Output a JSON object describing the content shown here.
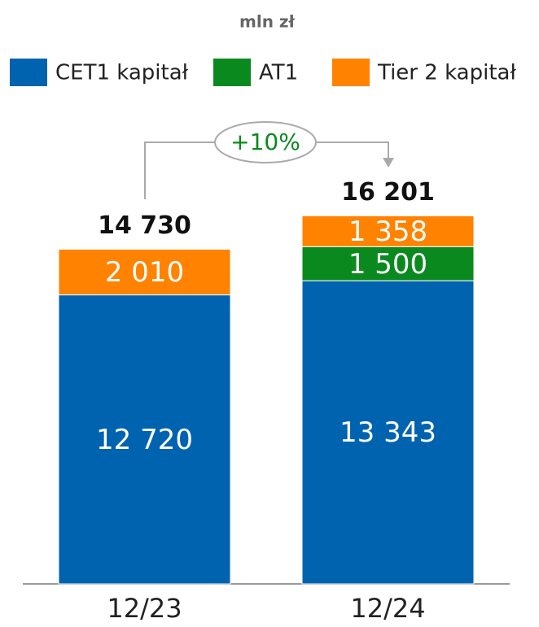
{
  "chart_data": {
    "type": "stacked_bar",
    "subtitle": "mln zł",
    "categories": [
      "12/23",
      "12/24"
    ],
    "series": [
      {
        "name": "CET1 kapitał",
        "color": "#0063b0",
        "values": [
          12720,
          13343
        ],
        "value_labels": [
          "12 720",
          "13 343"
        ]
      },
      {
        "name": "AT1",
        "color": "#0a8a1e",
        "values": [
          null,
          1500
        ],
        "value_labels": [
          null,
          "1 500"
        ]
      },
      {
        "name": "Tier 2 kapitał",
        "color": "#ff8200",
        "values": [
          2010,
          1358
        ],
        "value_labels": [
          "2 010",
          "1 358"
        ]
      }
    ],
    "totals": {
      "values": [
        14730,
        16201
      ],
      "value_labels": [
        "14 730",
        "16 201"
      ]
    },
    "annotation": "+10%",
    "ylim": [
      0,
      16500
    ]
  }
}
